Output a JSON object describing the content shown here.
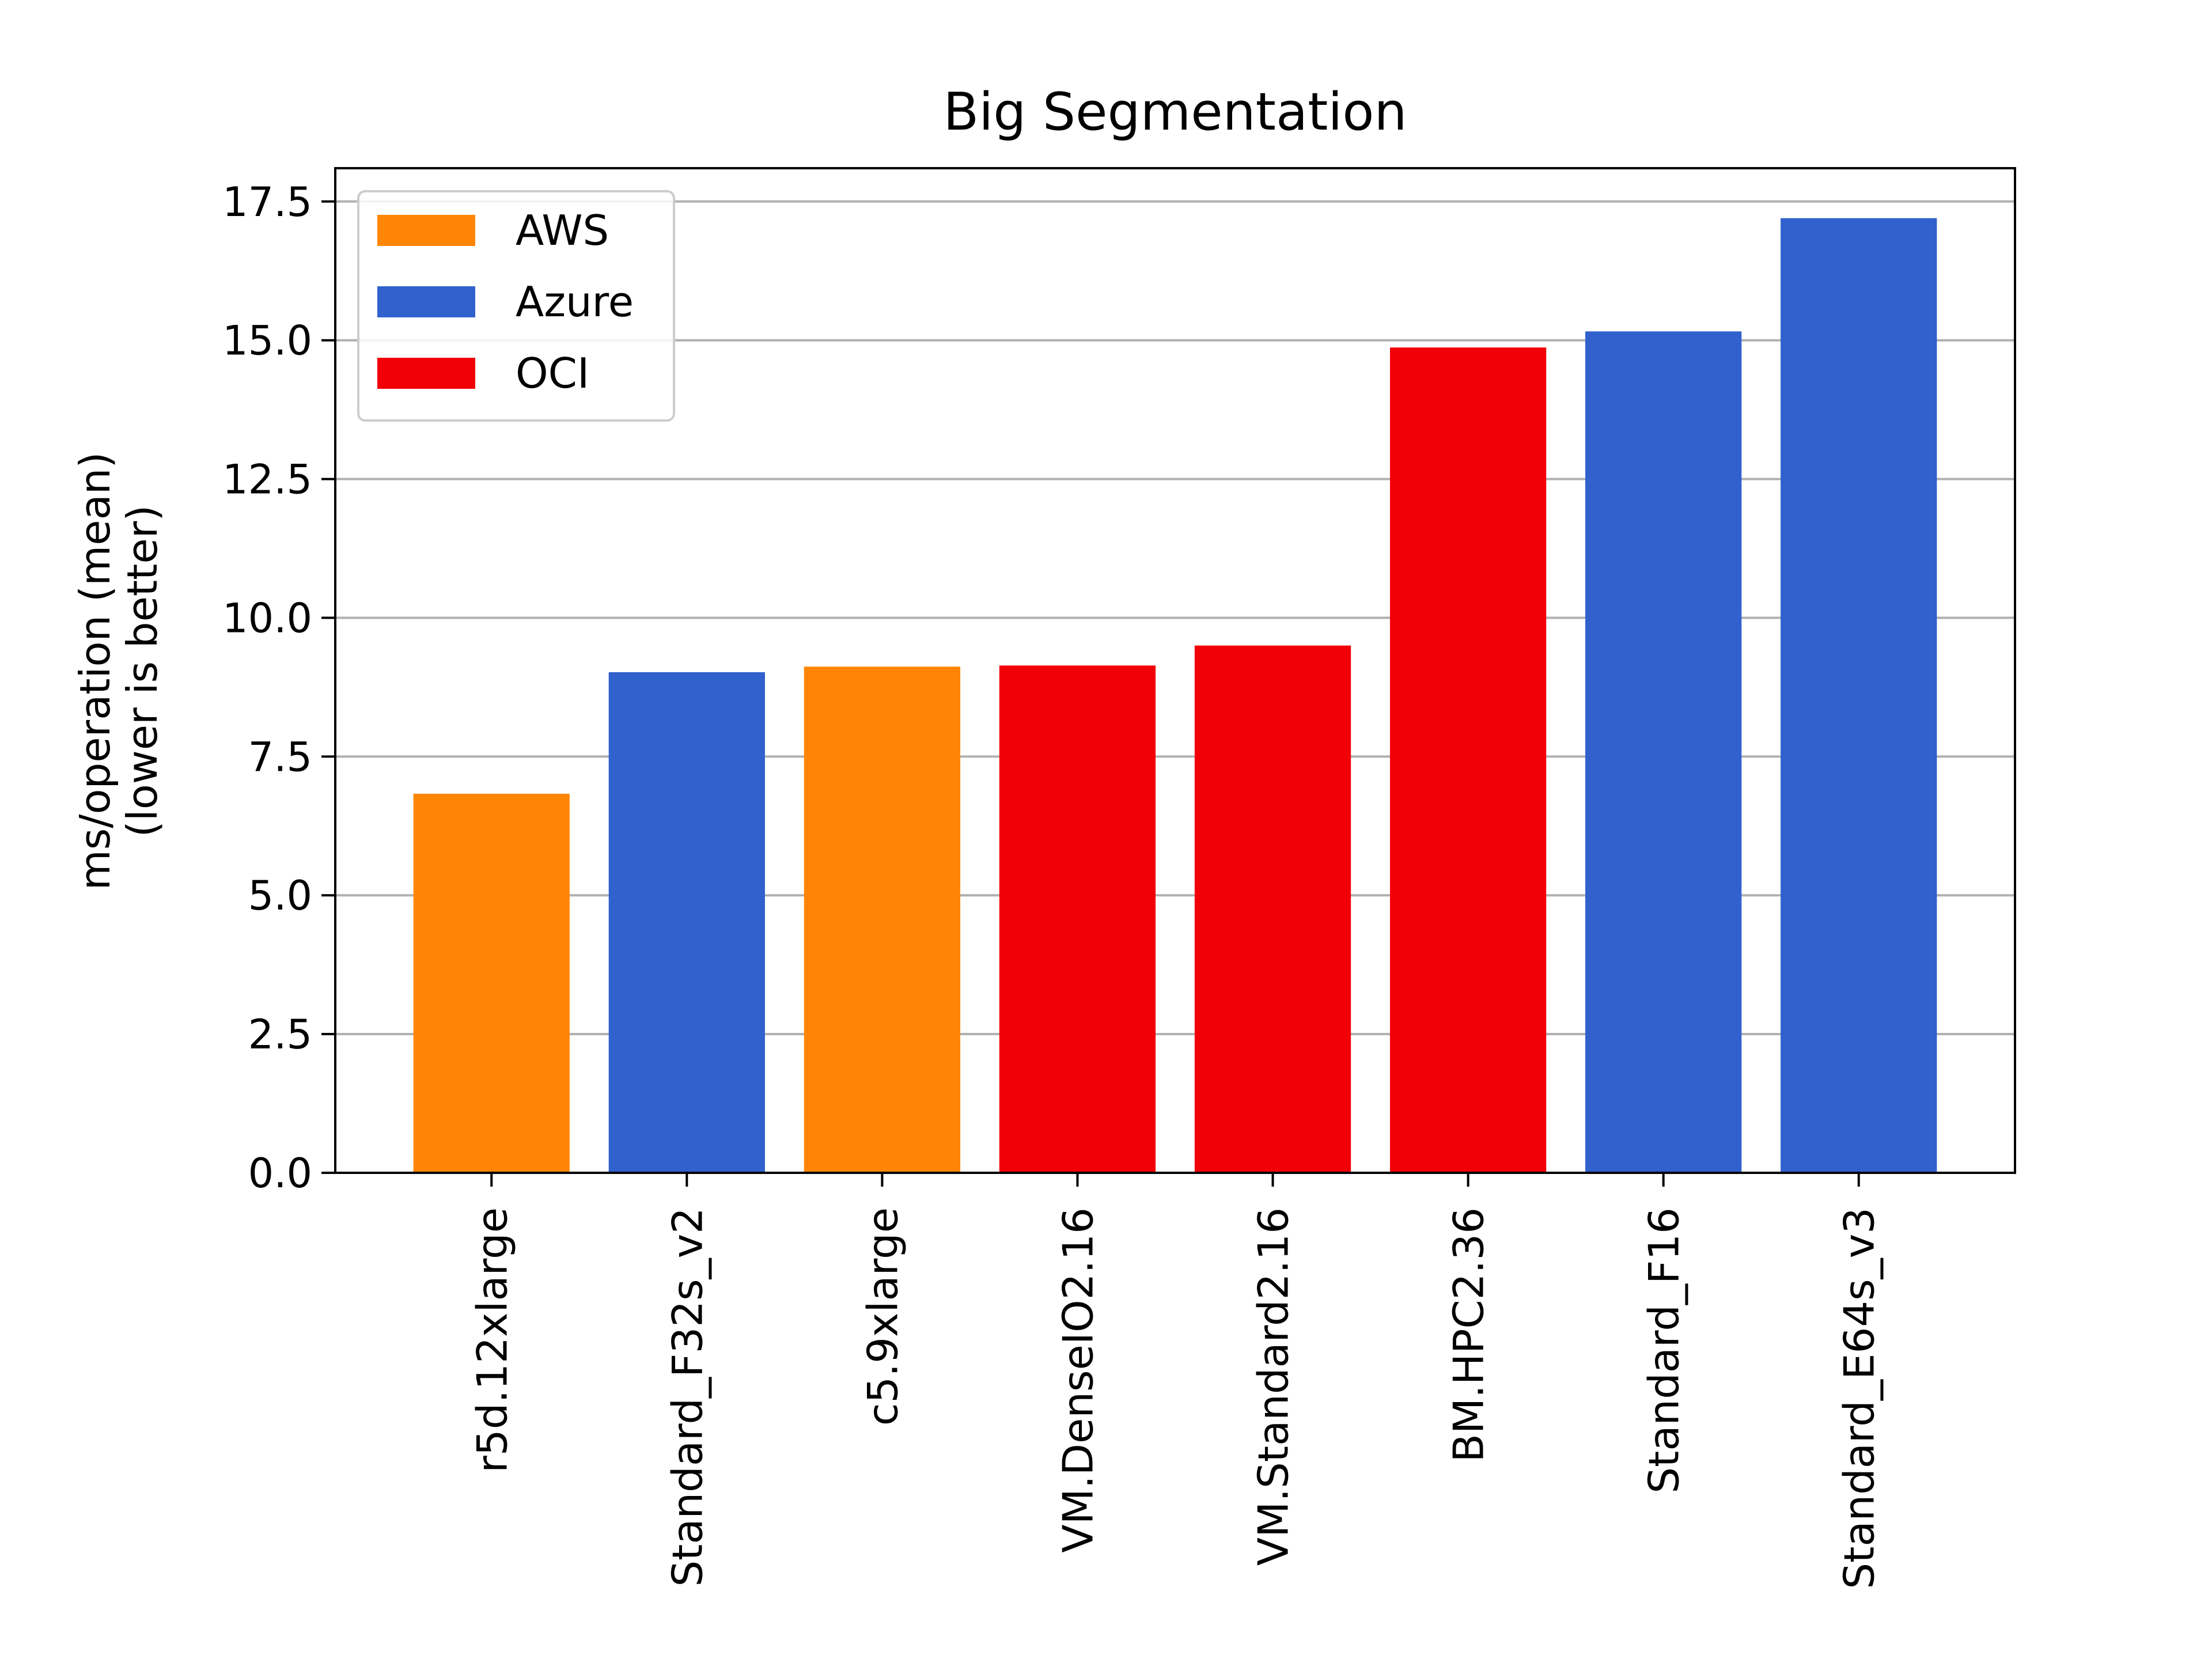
{
  "chart_data": {
    "type": "bar",
    "title": "Big Segmentation",
    "xlabel": "",
    "ylabel": [
      "ms/operation (mean)",
      "(lower is better)"
    ],
    "ylim": [
      0,
      18.1
    ],
    "yticks": [
      "0.0",
      "2.5",
      "5.0",
      "7.5",
      "10.0",
      "12.5",
      "15.0",
      "17.5"
    ],
    "grid": "horizontal",
    "legend_position": "top-left",
    "categories": [
      "r5d.12xlarge",
      "Standard_F32s_v2",
      "c5.9xlarge",
      "VM.DenseIO2.16",
      "VM.Standard2.16",
      "BM.HPC2.36",
      "Standard_F16",
      "Standard_E64s_v3"
    ],
    "values": [
      6.83,
      9.02,
      9.12,
      9.14,
      9.5,
      14.87,
      15.16,
      17.2
    ],
    "providers": [
      "AWS",
      "Azure",
      "AWS",
      "OCI",
      "OCI",
      "OCI",
      "Azure",
      "Azure"
    ],
    "legend": [
      {
        "name": "AWS",
        "color": "#ff8605"
      },
      {
        "name": "Azure",
        "color": "#3061cd"
      },
      {
        "name": "OCI",
        "color": "#f20007"
      }
    ]
  }
}
